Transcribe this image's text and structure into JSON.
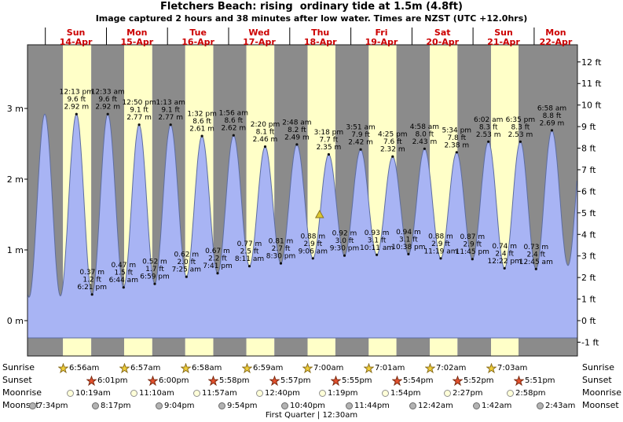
{
  "chart_data": {
    "type": "area",
    "title": "Fletchers Beach: rising  ordinary tide at 1.5m (4.8ft)",
    "subtitle": "Image captured 2 hours and 38 minutes after low water. Times are NZST (UTC +12.0hrs)",
    "days": [
      {
        "dow": "Sun",
        "date": "14-Apr"
      },
      {
        "dow": "Mon",
        "date": "15-Apr"
      },
      {
        "dow": "Tue",
        "date": "16-Apr"
      },
      {
        "dow": "Wed",
        "date": "17-Apr"
      },
      {
        "dow": "Thu",
        "date": "18-Apr"
      },
      {
        "dow": "Fri",
        "date": "19-Apr"
      },
      {
        "dow": "Sat",
        "date": "20-Apr"
      },
      {
        "dow": "Sun",
        "date": "21-Apr"
      },
      {
        "dow": "Mon",
        "date": "22-Apr"
      }
    ],
    "y_axis_left": {
      "unit": "m",
      "ticks": [
        0,
        1,
        2,
        3
      ],
      "labels": [
        "0 m",
        "1 m",
        "2 m",
        "3 m"
      ]
    },
    "y_axis_right": {
      "unit": "ft",
      "ticks_min": -1,
      "ticks_max": 12,
      "labels": [
        "-1 ft",
        "0 ft",
        "1 ft",
        "2 ft",
        "3 ft",
        "4 ft",
        "5 ft",
        "6 ft",
        "7 ft",
        "8 ft",
        "9 ft",
        "10 ft",
        "11 ft",
        "12 ft"
      ]
    },
    "tide_events": [
      {
        "day": 0,
        "type": "high",
        "time": "12:13 pm",
        "height_m": 2.92,
        "height_ft": 9.6
      },
      {
        "day": 0,
        "type": "low",
        "time": "6:21 pm",
        "height_m": 0.37,
        "height_ft": 1.2
      },
      {
        "day": 1,
        "type": "high",
        "time": "12:33 am",
        "height_m": 2.92,
        "height_ft": 9.6
      },
      {
        "day": 1,
        "type": "low",
        "time": "6:44 am",
        "height_m": 0.47,
        "height_ft": 1.5
      },
      {
        "day": 1,
        "type": "high",
        "time": "12:50 pm",
        "height_m": 2.77,
        "height_ft": 9.1
      },
      {
        "day": 1,
        "type": "low",
        "time": "6:59 pm",
        "height_m": 0.52,
        "height_ft": 1.7
      },
      {
        "day": 2,
        "type": "high",
        "time": "1:13 am",
        "height_m": 2.77,
        "height_ft": 9.1
      },
      {
        "day": 2,
        "type": "low",
        "time": "7:25 am",
        "height_m": 0.62,
        "height_ft": 2.0
      },
      {
        "day": 2,
        "type": "high",
        "time": "1:32 pm",
        "height_m": 2.61,
        "height_ft": 8.6
      },
      {
        "day": 2,
        "type": "low",
        "time": "7:41 pm",
        "height_m": 0.67,
        "height_ft": 2.2
      },
      {
        "day": 3,
        "type": "high",
        "time": "1:56 am",
        "height_m": 2.62,
        "height_ft": 8.6
      },
      {
        "day": 3,
        "type": "low",
        "time": "8:11 am",
        "height_m": 0.77,
        "height_ft": 2.5
      },
      {
        "day": 3,
        "type": "high",
        "time": "2:20 pm",
        "height_m": 2.46,
        "height_ft": 8.1
      },
      {
        "day": 3,
        "type": "low",
        "time": "8:30 pm",
        "height_m": 0.81,
        "height_ft": 2.7
      },
      {
        "day": 4,
        "type": "high",
        "time": "2:48 am",
        "height_m": 2.49,
        "height_ft": 8.2
      },
      {
        "day": 4,
        "type": "low",
        "time": "9:06 am",
        "height_m": 0.88,
        "height_ft": 2.9
      },
      {
        "day": 4,
        "type": "high",
        "time": "3:18 pm",
        "height_m": 2.35,
        "height_ft": 7.7
      },
      {
        "day": 4,
        "type": "low",
        "time": "9:30 pm",
        "height_m": 0.92,
        "height_ft": 3.0
      },
      {
        "day": 5,
        "type": "high",
        "time": "3:51 am",
        "height_m": 2.42,
        "height_ft": 7.9
      },
      {
        "day": 5,
        "type": "low",
        "time": "10:11 am",
        "height_m": 0.93,
        "height_ft": 3.1
      },
      {
        "day": 5,
        "type": "high",
        "time": "4:25 pm",
        "height_m": 2.32,
        "height_ft": 7.6
      },
      {
        "day": 5,
        "type": "low",
        "time": "10:38 pm",
        "height_m": 0.94,
        "height_ft": 3.1
      },
      {
        "day": 6,
        "type": "high",
        "time": "4:58 am",
        "height_m": 2.43,
        "height_ft": 8.0
      },
      {
        "day": 6,
        "type": "low",
        "time": "11:19 am",
        "height_m": 0.88,
        "height_ft": 2.9
      },
      {
        "day": 6,
        "type": "high",
        "time": "5:34 pm",
        "height_m": 2.38,
        "height_ft": 7.8
      },
      {
        "day": 6,
        "type": "low",
        "time": "11:45 pm",
        "height_m": 0.87,
        "height_ft": 2.9
      },
      {
        "day": 7,
        "type": "high",
        "time": "6:02 am",
        "height_m": 2.53,
        "height_ft": 8.3
      },
      {
        "day": 7,
        "type": "low",
        "time": "12:22 pm",
        "height_m": 0.74,
        "height_ft": 2.4
      },
      {
        "day": 7,
        "type": "high",
        "time": "6:35 pm",
        "height_m": 2.53,
        "height_ft": 8.3
      },
      {
        "day": 8,
        "type": "low",
        "time": "12:45 am",
        "height_m": 0.73,
        "height_ft": 2.4
      },
      {
        "day": 8,
        "type": "high",
        "time": "6:58 am",
        "height_m": 2.69,
        "height_ft": 8.8
      }
    ],
    "marker": {
      "day": 4,
      "time": "11:44 am",
      "height_m": 1.5
    },
    "colors": {
      "night": "#8b8b8b",
      "day": "#ffffc8",
      "water": "#a8b4f4",
      "water_edge": "#5d6da0",
      "day_label": "#cc0000",
      "marker": "#dcc832",
      "sunrise_star": "#f0cf3a",
      "sunset_star": "#e4512e",
      "moonrise_circle": "#ffffd8",
      "moonset_circle": "#b3b3b3"
    }
  },
  "astro": {
    "sunrise": {
      "label": "Sunrise",
      "events": [
        {
          "day": 0,
          "time": "6:56am"
        },
        {
          "day": 1,
          "time": "6:57am"
        },
        {
          "day": 2,
          "time": "6:58am"
        },
        {
          "day": 3,
          "time": "6:59am"
        },
        {
          "day": 4,
          "time": "7:00am"
        },
        {
          "day": 5,
          "time": "7:01am"
        },
        {
          "day": 6,
          "time": "7:02am"
        },
        {
          "day": 7,
          "time": "7:03am"
        }
      ]
    },
    "sunset": {
      "label": "Sunset",
      "events": [
        {
          "day": 0,
          "time": "6:01pm"
        },
        {
          "day": 1,
          "time": "6:00pm"
        },
        {
          "day": 2,
          "time": "5:58pm"
        },
        {
          "day": 3,
          "time": "5:57pm"
        },
        {
          "day": 4,
          "time": "5:55pm"
        },
        {
          "day": 5,
          "time": "5:54pm"
        },
        {
          "day": 6,
          "time": "5:52pm"
        },
        {
          "day": 7,
          "time": "5:51pm"
        }
      ]
    },
    "moonrise": {
      "label": "Moonrise",
      "events": [
        {
          "day": 0,
          "time": "10:19am"
        },
        {
          "day": 1,
          "time": "11:10am"
        },
        {
          "day": 2,
          "time": "11:57am"
        },
        {
          "day": 3,
          "time": "12:40pm"
        },
        {
          "day": 4,
          "time": "1:19pm"
        },
        {
          "day": 5,
          "time": "1:54pm"
        },
        {
          "day": 6,
          "time": "2:27pm"
        },
        {
          "day": 7,
          "time": "2:58pm"
        }
      ]
    },
    "moonset": {
      "label": "Moonset",
      "events": [
        {
          "day": -1,
          "time": "7:34pm"
        },
        {
          "day": 0,
          "time": "8:17pm"
        },
        {
          "day": 1,
          "time": "9:04pm"
        },
        {
          "day": 2,
          "time": "9:54pm"
        },
        {
          "day": 3,
          "time": "10:40pm"
        },
        {
          "day": 4,
          "time": "11:44pm"
        },
        {
          "day": 6,
          "time": "12:42am"
        },
        {
          "day": 7,
          "time": "1:42am"
        },
        {
          "day": 8,
          "time": "2:43am"
        }
      ]
    },
    "moon_phase": "First Quarter | 12:30am"
  }
}
